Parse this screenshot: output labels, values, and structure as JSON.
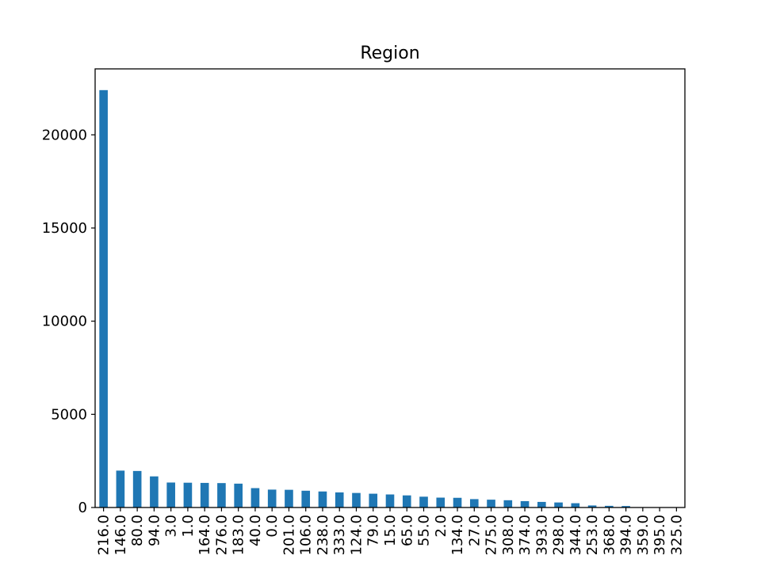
{
  "chart_data": {
    "type": "bar",
    "title": "Region",
    "xlabel": "",
    "ylabel": "",
    "categories": [
      "216.0",
      "146.0",
      "80.0",
      "94.0",
      "3.0",
      "1.0",
      "164.0",
      "276.0",
      "183.0",
      "40.0",
      "0.0",
      "201.0",
      "106.0",
      "238.0",
      "333.0",
      "124.0",
      "79.0",
      "15.0",
      "65.0",
      "55.0",
      "2.0",
      "134.0",
      "27.0",
      "275.0",
      "308.0",
      "374.0",
      "393.0",
      "298.0",
      "344.0",
      "253.0",
      "368.0",
      "394.0",
      "359.0",
      "395.0",
      "325.0"
    ],
    "values": [
      22400,
      1980,
      1960,
      1670,
      1340,
      1330,
      1320,
      1310,
      1280,
      1040,
      960,
      950,
      900,
      860,
      810,
      780,
      740,
      700,
      650,
      580,
      530,
      520,
      450,
      420,
      390,
      340,
      300,
      270,
      230,
      110,
      90,
      80,
      15,
      10,
      5
    ],
    "ylim": [
      0,
      23540
    ],
    "yticks": [
      0,
      5000,
      10000,
      15000,
      20000
    ],
    "grid": false,
    "bar_color": "#1f77b4"
  }
}
